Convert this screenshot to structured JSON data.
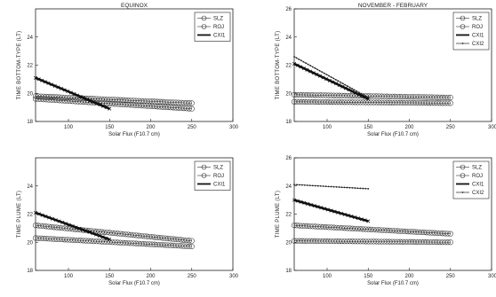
{
  "chart_data": [
    {
      "type": "line",
      "title": "EQUINOX",
      "xlabel": "Solar Flux (F10.7 cm)",
      "ylabel": "TIME BOTTOM-TYPE (LT)",
      "xlim": [
        60,
        300
      ],
      "ylim": [
        18,
        26
      ],
      "xticks": [
        100,
        150,
        200,
        250,
        300
      ],
      "yticks": [
        18,
        20,
        22,
        24
      ],
      "legend_position": "top-right",
      "series": [
        {
          "name": "SLZ",
          "marker": "circle",
          "x": [
            60,
            250
          ],
          "y": [
            19.6,
            18.9
          ]
        },
        {
          "name": "ROJ",
          "marker": "circle",
          "x": [
            60,
            250
          ],
          "y": [
            19.8,
            19.3
          ]
        },
        {
          "name": "CXI1",
          "marker": "star",
          "x": [
            60,
            150
          ],
          "y": [
            21.1,
            18.9
          ]
        }
      ]
    },
    {
      "type": "line",
      "title": "NOVEMBER - FEBRUARY",
      "xlabel": "Solar Flux (F10.7 cm)",
      "ylabel": "TIME BOTTOM-TYPE (LT)",
      "xlim": [
        60,
        300
      ],
      "ylim": [
        18,
        26
      ],
      "xticks": [
        100,
        150,
        200,
        250,
        300
      ],
      "yticks": [
        18,
        20,
        22,
        24,
        26
      ],
      "legend_position": "top-right",
      "series": [
        {
          "name": "SLZ",
          "marker": "circle",
          "x": [
            60,
            250
          ],
          "y": [
            19.4,
            19.3
          ]
        },
        {
          "name": "ROJ",
          "marker": "circle",
          "x": [
            60,
            250
          ],
          "y": [
            19.9,
            19.7
          ]
        },
        {
          "name": "CXI1",
          "marker": "star",
          "x": [
            60,
            150
          ],
          "y": [
            22.1,
            19.6
          ]
        },
        {
          "name": "CXI2",
          "marker": "dot",
          "x": [
            60,
            150
          ],
          "y": [
            22.6,
            19.7
          ]
        }
      ]
    },
    {
      "type": "line",
      "title": "",
      "xlabel": "Solar Flux (F10.7 cm)",
      "ylabel": "TIME PLUME (LT)",
      "xlim": [
        60,
        300
      ],
      "ylim": [
        18,
        26
      ],
      "xticks": [
        100,
        150,
        200,
        250,
        300
      ],
      "yticks": [
        18,
        20,
        22,
        24
      ],
      "legend_position": "top-right",
      "series": [
        {
          "name": "SLZ",
          "marker": "circle",
          "x": [
            60,
            250
          ],
          "y": [
            20.3,
            19.7
          ]
        },
        {
          "name": "ROJ",
          "marker": "circle",
          "x": [
            60,
            250
          ],
          "y": [
            21.2,
            20.1
          ]
        },
        {
          "name": "CXI1",
          "marker": "star",
          "x": [
            60,
            150
          ],
          "y": [
            22.1,
            20.2
          ]
        }
      ]
    },
    {
      "type": "line",
      "title": "",
      "xlabel": "Solar Flux (F10.7 cm)",
      "ylabel": "TIME PLUME (LT)",
      "xlim": [
        60,
        300
      ],
      "ylim": [
        18,
        26
      ],
      "xticks": [
        100,
        150,
        200,
        250,
        300
      ],
      "yticks": [
        18,
        20,
        22,
        24,
        26
      ],
      "legend_position": "top-right",
      "series": [
        {
          "name": "SLZ",
          "marker": "circle",
          "x": [
            60,
            250
          ],
          "y": [
            20.1,
            20.0
          ]
        },
        {
          "name": "ROJ",
          "marker": "circle",
          "x": [
            60,
            250
          ],
          "y": [
            21.2,
            20.6
          ]
        },
        {
          "name": "CXI1",
          "marker": "star",
          "x": [
            60,
            150
          ],
          "y": [
            23.0,
            21.5
          ]
        },
        {
          "name": "CXI2",
          "marker": "dot",
          "x": [
            60,
            150
          ],
          "y": [
            24.1,
            23.8
          ]
        }
      ]
    }
  ]
}
